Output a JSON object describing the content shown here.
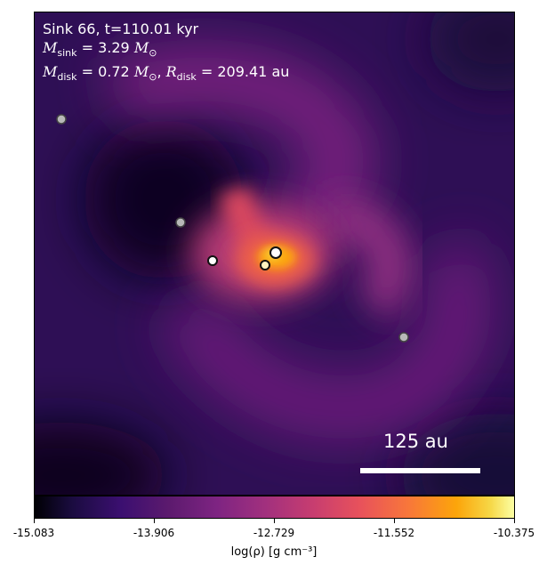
{
  "annotation": {
    "line1": "Sink 66, t=110.01 kyr",
    "msink_symbol": "M",
    "msink_sub": "sink",
    "msink_value": " = 3.29 ",
    "msink_unit": "M",
    "msink_unit_sub": "⊙",
    "mdisk_symbol": "M",
    "mdisk_sub": "disk",
    "mdisk_value": " = 0.72 ",
    "mdisk_unit": "M",
    "mdisk_unit_sub": "⊙",
    "sep": ", ",
    "rdisk_symbol": "R",
    "rdisk_sub": "disk",
    "rdisk_value": " = 209.41 au"
  },
  "scale_bar": {
    "label": "125 au"
  },
  "colorbar": {
    "colormap": "inferno",
    "ticks": [
      "-15.083",
      "-13.906",
      "-12.729",
      "-11.552",
      "-10.375"
    ],
    "label": "log(ρ) [g cm⁻³]"
  },
  "sinks": [
    {
      "id": "sink-a",
      "type": "grey"
    },
    {
      "id": "sink-b",
      "type": "grey"
    },
    {
      "id": "sink-c",
      "type": "white"
    },
    {
      "id": "sink-d",
      "type": "white-yellow"
    },
    {
      "id": "sink-e",
      "type": "white-yellow"
    },
    {
      "id": "sink-f",
      "type": "grey"
    }
  ],
  "colors": {
    "background": "#2a0f4e",
    "dark_region": "#0b0520",
    "spiral_outer": "#8a2d7f",
    "spiral_mid": "#d8465f",
    "spiral_core": "#fca50a",
    "text": "#ffffff"
  }
}
